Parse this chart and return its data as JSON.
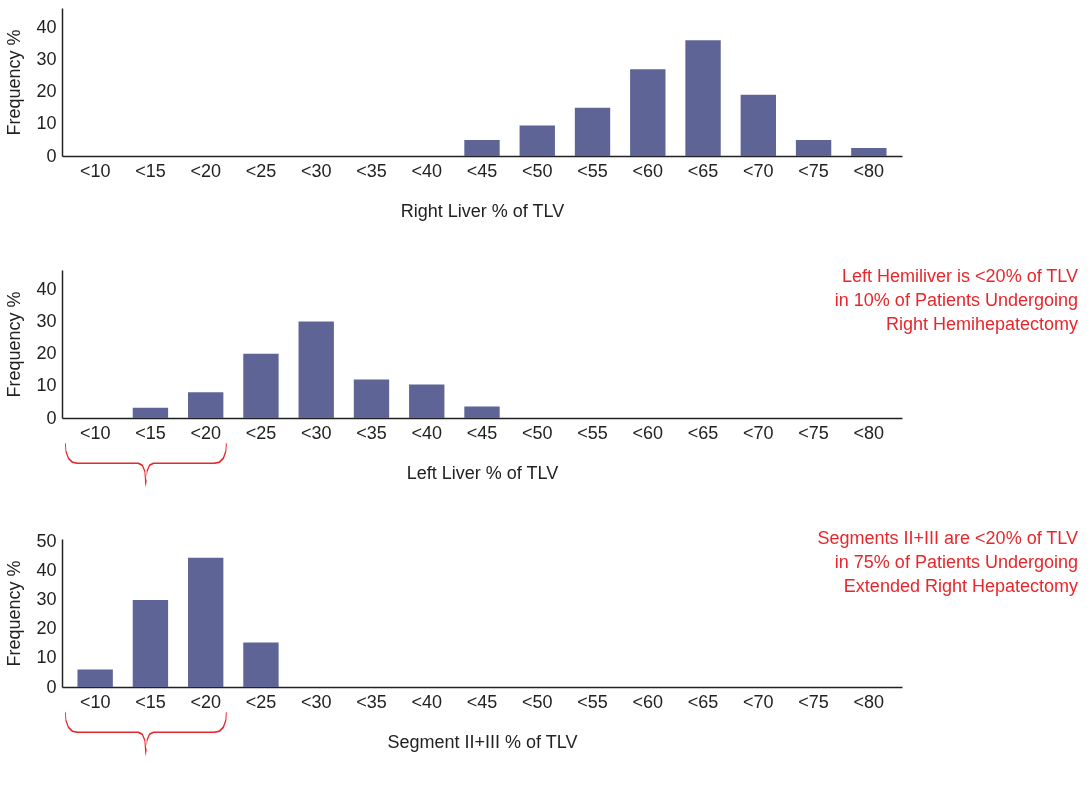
{
  "chart_data": [
    {
      "type": "bar",
      "categories": [
        "<10",
        "<15",
        "<20",
        "<25",
        "<30",
        "<35",
        "<40",
        "<45",
        "<50",
        "<55",
        "<60",
        "<65",
        "<70",
        "<75",
        "<80"
      ],
      "values": [
        0,
        0,
        0,
        0,
        0,
        0,
        0,
        5,
        9.5,
        15,
        27,
        36,
        19,
        5,
        2.5
      ],
      "color": "#5e6596",
      "ylim": [
        0,
        46
      ],
      "yticks": [
        0,
        10,
        20,
        30,
        40
      ],
      "ylabel": "Frequency %",
      "xlabel": "Right Liver % of TLV"
    },
    {
      "type": "bar",
      "categories": [
        "<10",
        "<15",
        "<20",
        "<25",
        "<30",
        "<35",
        "<40",
        "<45",
        "<50",
        "<55",
        "<60",
        "<65",
        "<70",
        "<75",
        "<80"
      ],
      "values": [
        0,
        3.2,
        8,
        20,
        30,
        12,
        10.4,
        3.6,
        0,
        0,
        0,
        0,
        0,
        0,
        0
      ],
      "color": "#5e6596",
      "ylim": [
        0,
        46
      ],
      "yticks": [
        0,
        10,
        20,
        30,
        40
      ],
      "ylabel": "Frequency %",
      "xlabel": "Left Liver % of TLV",
      "annotations": [
        "Left Hemiliver is <20% of TLV\nin 10% of Patients Undergoing\nRight Hemihepatectomy"
      ]
    },
    {
      "type": "bar",
      "categories": [
        "<10",
        "<15",
        "<20",
        "<25",
        "<30",
        "<35",
        "<40",
        "<45",
        "<50",
        "<55",
        "<60",
        "<65",
        "<70",
        "<75",
        "<80"
      ],
      "values": [
        6,
        30,
        44.5,
        15.3,
        0,
        0,
        0,
        0,
        0,
        0,
        0,
        0,
        0,
        0,
        0
      ],
      "color": "#5e6596",
      "ylim": [
        0,
        51
      ],
      "yticks": [
        0,
        10,
        20,
        30,
        40,
        50
      ],
      "ylabel": "Frequency %",
      "xlabel": "Segment II+III % of TLV",
      "annotations": [
        "Segments II+III are <20% of TLV\nin 75% of Patients Undergoing\nExtended Right Hepatectomy"
      ]
    }
  ]
}
